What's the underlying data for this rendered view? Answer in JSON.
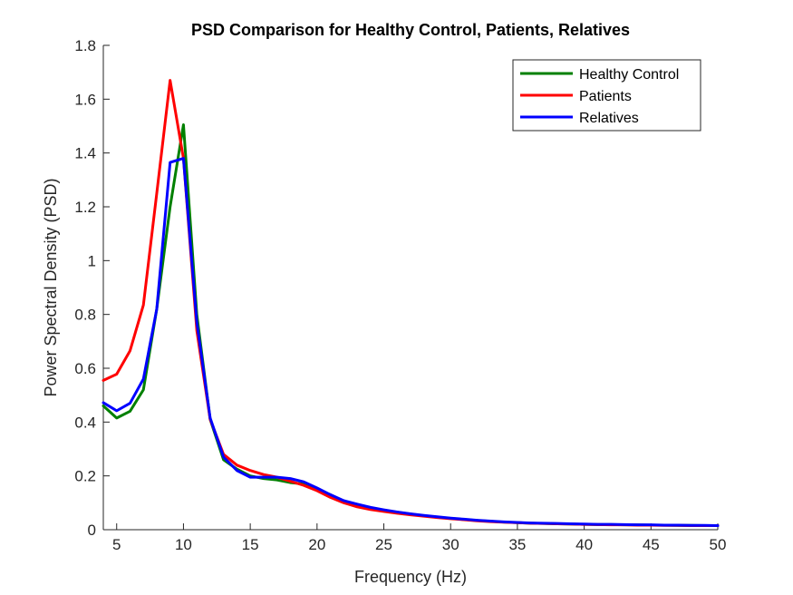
{
  "chart_data": {
    "type": "line",
    "title": "PSD Comparison for Healthy Control, Patients, Relatives",
    "xlabel": "Frequency (Hz)",
    "ylabel": "Power Spectral Density (PSD)",
    "xlim": [
      4,
      50
    ],
    "ylim": [
      0,
      1.8
    ],
    "xticks": [
      5,
      10,
      15,
      20,
      25,
      30,
      35,
      40,
      45,
      50
    ],
    "yticks": [
      0,
      0.2,
      0.4,
      0.6,
      0.8,
      1,
      1.2,
      1.4,
      1.6,
      1.8
    ],
    "xtick_labels": [
      "5",
      "10",
      "15",
      "20",
      "25",
      "30",
      "35",
      "40",
      "45",
      "50"
    ],
    "ytick_labels": [
      "0",
      "0.2",
      "0.4",
      "0.6",
      "0.8",
      "1",
      "1.2",
      "1.4",
      "1.6",
      "1.8"
    ],
    "grid": false,
    "legend_position": "top-right",
    "x": [
      4,
      5,
      6,
      7,
      8,
      9,
      10,
      11,
      12,
      13,
      14,
      15,
      16,
      17,
      18,
      19,
      20,
      21,
      22,
      23,
      24,
      25,
      26,
      27,
      28,
      29,
      30,
      31,
      32,
      33,
      34,
      35,
      36,
      37,
      38,
      39,
      40,
      41,
      42,
      43,
      44,
      45,
      46,
      47,
      48,
      49,
      50
    ],
    "series": [
      {
        "name": "Healthy Control",
        "color": "#008000",
        "values": [
          0.46,
          0.415,
          0.44,
          0.52,
          0.82,
          1.2,
          1.505,
          0.8,
          0.41,
          0.26,
          0.225,
          0.2,
          0.19,
          0.185,
          0.175,
          0.17,
          0.15,
          0.13,
          0.105,
          0.09,
          0.08,
          0.072,
          0.065,
          0.058,
          0.052,
          0.046,
          0.042,
          0.038,
          0.034,
          0.031,
          0.028,
          0.026,
          0.024,
          0.023,
          0.022,
          0.021,
          0.02,
          0.019,
          0.019,
          0.018,
          0.018,
          0.017,
          0.017,
          0.016,
          0.016,
          0.015,
          0.015
        ]
      },
      {
        "name": "Patients",
        "color": "#ff0000",
        "values": [
          0.555,
          0.578,
          0.665,
          0.835,
          1.25,
          1.67,
          1.38,
          0.74,
          0.41,
          0.28,
          0.24,
          0.22,
          0.205,
          0.195,
          0.18,
          0.165,
          0.145,
          0.12,
          0.1,
          0.085,
          0.075,
          0.068,
          0.061,
          0.055,
          0.05,
          0.045,
          0.041,
          0.037,
          0.033,
          0.03,
          0.028,
          0.026,
          0.024,
          0.023,
          0.022,
          0.021,
          0.02,
          0.019,
          0.018,
          0.018,
          0.017,
          0.017,
          0.016,
          0.016,
          0.015,
          0.015,
          0.015
        ]
      },
      {
        "name": "Relatives",
        "color": "#0000ff",
        "values": [
          0.472,
          0.442,
          0.47,
          0.56,
          0.82,
          1.365,
          1.38,
          0.77,
          0.415,
          0.27,
          0.22,
          0.195,
          0.195,
          0.195,
          0.19,
          0.178,
          0.155,
          0.13,
          0.108,
          0.095,
          0.083,
          0.074,
          0.066,
          0.059,
          0.053,
          0.048,
          0.043,
          0.039,
          0.035,
          0.032,
          0.029,
          0.027,
          0.025,
          0.024,
          0.023,
          0.022,
          0.021,
          0.02,
          0.02,
          0.019,
          0.018,
          0.018,
          0.017,
          0.017,
          0.016,
          0.016,
          0.015
        ]
      }
    ]
  }
}
